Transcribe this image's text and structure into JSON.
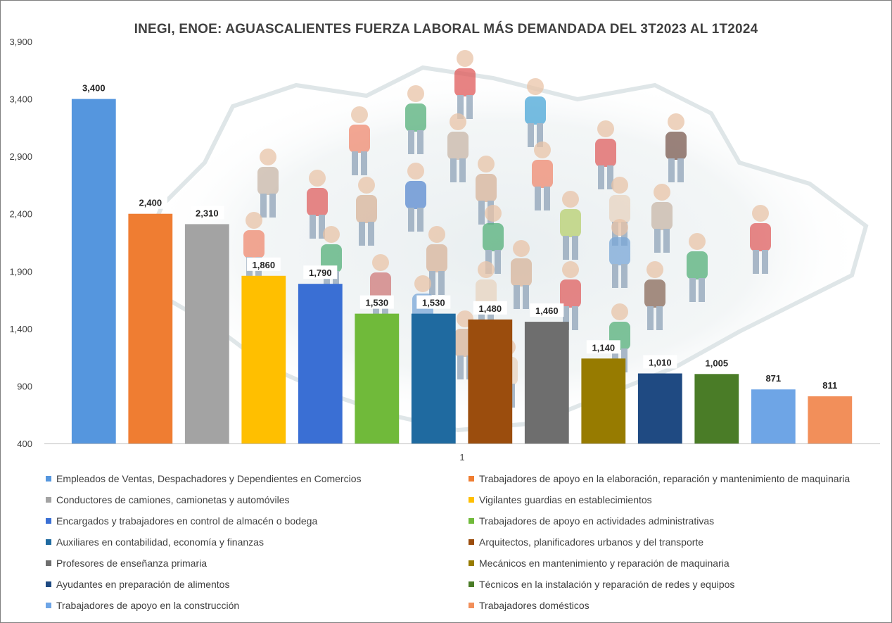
{
  "chart_data": {
    "type": "bar",
    "title": "INEGI, ENOE: AGUASCALIENTES FUERZA LABORAL MÁS DEMANDADA DEL 3T2023 AL 1T2024",
    "xlabel": "",
    "ylabel": "",
    "ylim": [
      400,
      3900
    ],
    "yticks": [
      "400",
      "900",
      "1,400",
      "1,900",
      "2,400",
      "2,900",
      "3,400",
      "3,900"
    ],
    "ytick_values": [
      400,
      900,
      1400,
      1900,
      2400,
      2900,
      3400,
      3900
    ],
    "categories": [
      "1"
    ],
    "grid": false,
    "legend_position": "bottom",
    "series": [
      {
        "name": "Empleados de Ventas, Despachadores y Dependientes en Comercios",
        "value": 3400,
        "label": "3,400",
        "color": "#5596de"
      },
      {
        "name": "Trabajadores de apoyo en la elaboración, reparación y mantenimiento de maquinaria",
        "value": 2400,
        "label": "2,400",
        "color": "#ef7d32"
      },
      {
        "name": "Conductores de camiones, camionetas y automóviles",
        "value": 2310,
        "label": "2,310",
        "color": "#a3a3a3"
      },
      {
        "name": "Vigilantes guardias en establecimientos",
        "value": 1860,
        "label": "1,860",
        "color": "#ffbf00"
      },
      {
        "name": "Encargados y trabajadores en control de almacén o bodega",
        "value": 1790,
        "label": "1,790",
        "color": "#3a6fd4"
      },
      {
        "name": "Trabajadores de apoyo en actividades administrativas",
        "value": 1530,
        "label": "1,530",
        "color": "#70ba3a"
      },
      {
        "name": "Auxiliares en contabilidad, economía y finanzas",
        "value": 1530,
        "label": "1,530",
        "color": "#1f6aa0"
      },
      {
        "name": "Arquitectos, planificadores urbanos y del transporte",
        "value": 1480,
        "label": "1,480",
        "color": "#9b4d0d"
      },
      {
        "name": "Profesores de enseñanza primaria",
        "value": 1460,
        "label": "1,460",
        "color": "#6e6e6e"
      },
      {
        "name": "Mecánicos en mantenimiento y reparación de maquinaria",
        "value": 1140,
        "label": "1,140",
        "color": "#977b00"
      },
      {
        "name": "Ayudantes en preparación de alimentos",
        "value": 1010,
        "label": "1,010",
        "color": "#1f4a82"
      },
      {
        "name": "Técnicos en la instalación y reparación de redes y equipos",
        "value": 1005,
        "label": "1,005",
        "color": "#4a7c27"
      },
      {
        "name": "Trabajadores de apoyo en la construcción",
        "value": 871,
        "label": "871",
        "color": "#6ea5e6"
      },
      {
        "name": "Trabajadores domésticos",
        "value": 811,
        "label": "811",
        "color": "#f28f5a"
      }
    ]
  }
}
